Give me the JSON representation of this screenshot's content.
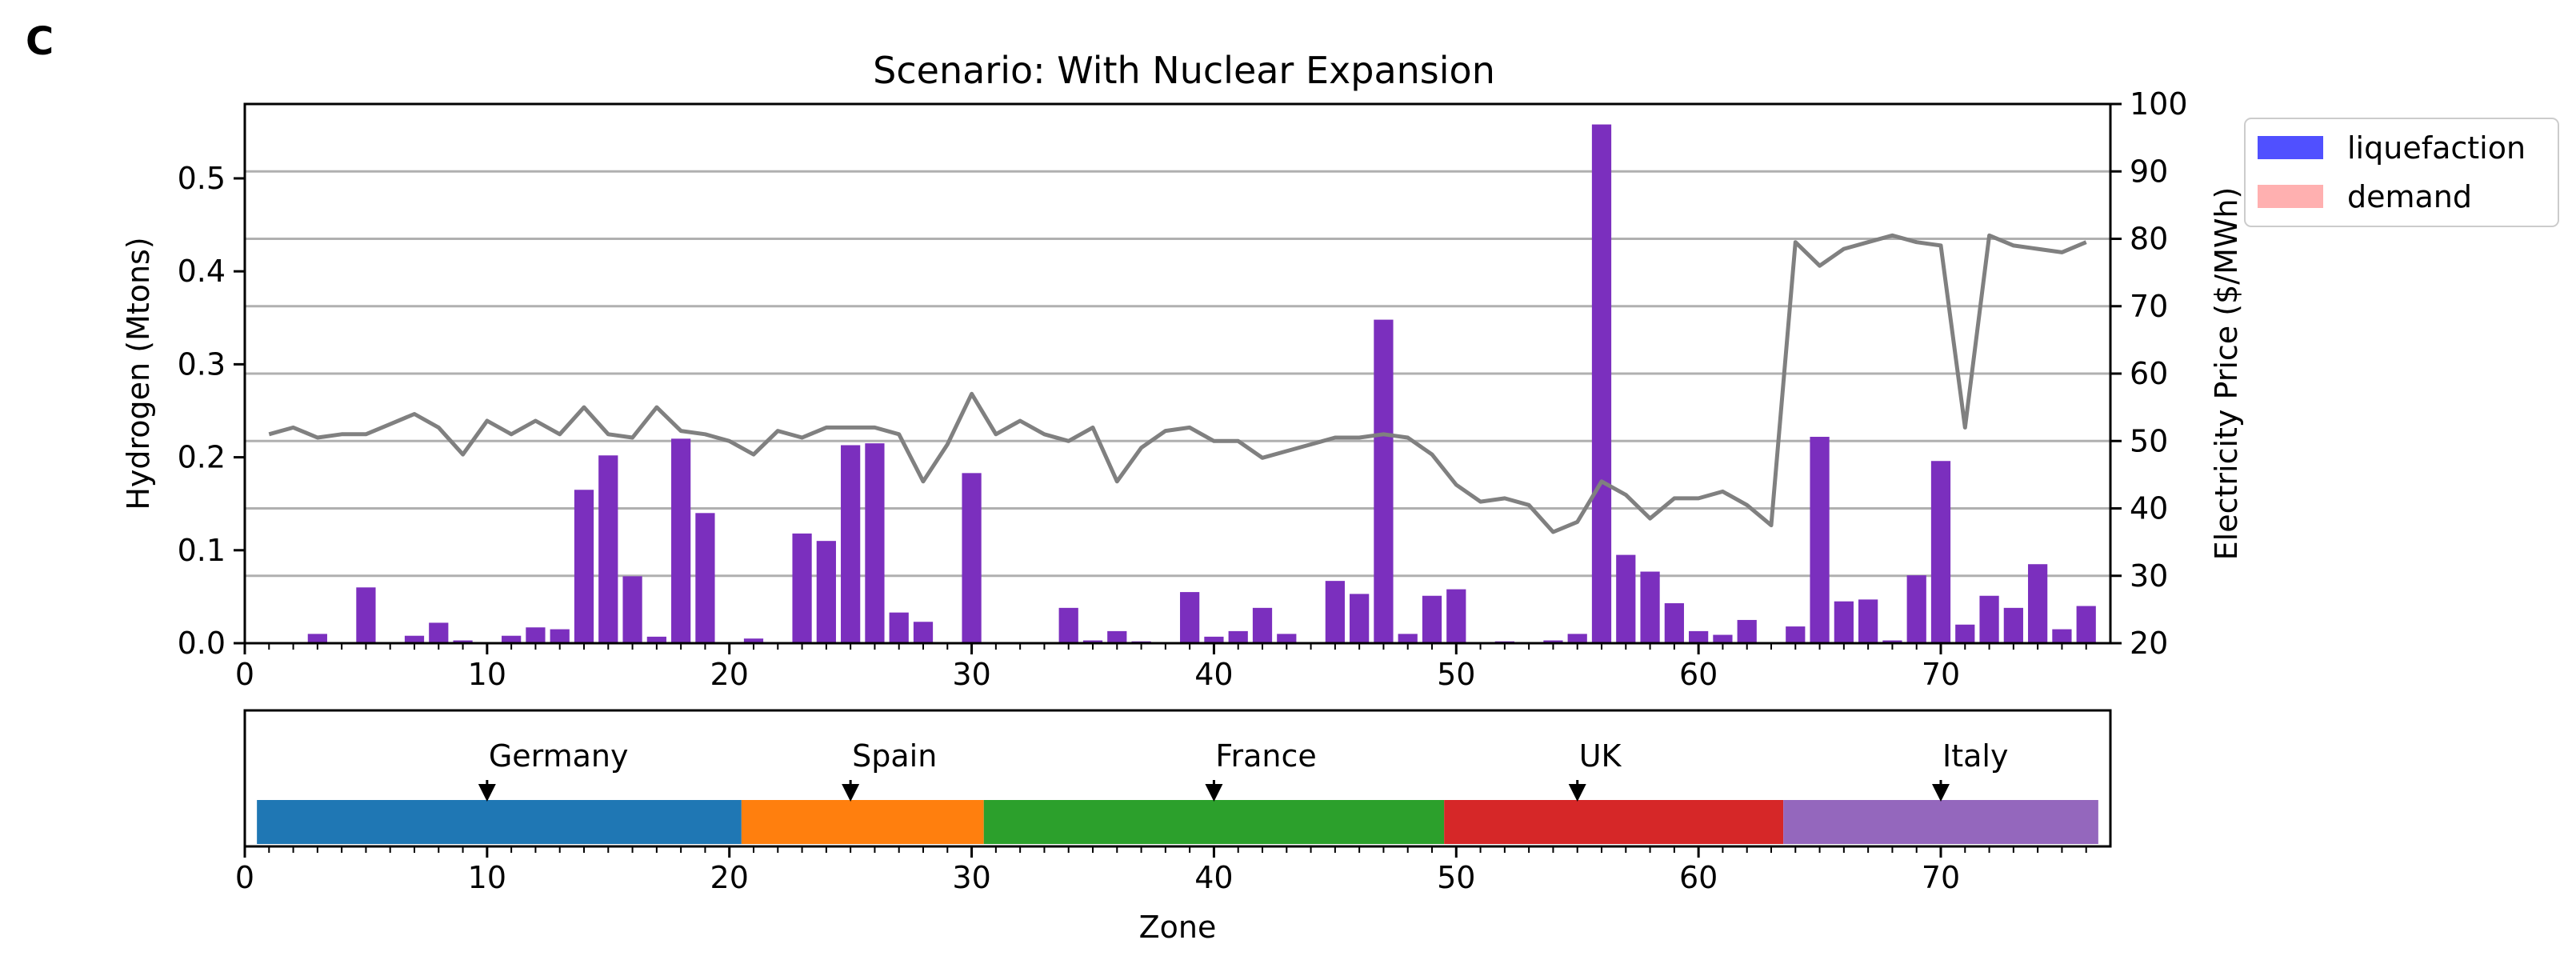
{
  "panel_label": "C",
  "colors": {
    "bar": "#7b2fbe",
    "price_line": "#808080",
    "gridline": "#b0b0b0",
    "legend_liquefaction": "#5050ff",
    "legend_demand": "#ffb0b0"
  },
  "chart_data": [
    {
      "type": "bar",
      "title": "Scenario: With Nuclear Expansion",
      "xlabel": "",
      "ylabel": "Hydrogen (Mtons)",
      "y2label": "Electricity Price ($/MWh)",
      "xlim": [
        0,
        77
      ],
      "ylim": [
        0,
        0.58
      ],
      "y2lim": [
        20,
        100
      ],
      "xticks": [
        0,
        10,
        20,
        30,
        40,
        50,
        60,
        70
      ],
      "yticks": [
        0.0,
        0.1,
        0.2,
        0.3,
        0.4,
        0.5
      ],
      "ytick_labels": [
        "0.0",
        "0.1",
        "0.2",
        "0.3",
        "0.4",
        "0.5"
      ],
      "y2ticks": [
        20,
        30,
        40,
        50,
        60,
        70,
        80,
        90,
        100
      ],
      "grid": "horizontal lines on right axis",
      "legend": {
        "placement": "outside top-right",
        "entries": [
          {
            "label": "liquefaction",
            "color": "#5050ff"
          },
          {
            "label": "demand",
            "color": "#ffb0b0"
          }
        ]
      },
      "x": [
        1,
        2,
        3,
        4,
        5,
        6,
        7,
        8,
        9,
        10,
        11,
        12,
        13,
        14,
        15,
        16,
        17,
        18,
        19,
        20,
        21,
        22,
        23,
        24,
        25,
        26,
        27,
        28,
        29,
        30,
        31,
        32,
        33,
        34,
        35,
        36,
        37,
        38,
        39,
        40,
        41,
        42,
        43,
        44,
        45,
        46,
        47,
        48,
        49,
        50,
        51,
        52,
        53,
        54,
        55,
        56,
        57,
        58,
        59,
        60,
        61,
        62,
        63,
        64,
        65,
        66,
        67,
        68,
        69,
        70,
        71,
        72,
        73,
        74,
        75,
        76
      ],
      "series": [
        {
          "type": "bar",
          "axis": "left",
          "values": [
            0.0,
            0.0,
            0.01,
            0.0,
            0.06,
            0.0,
            0.008,
            0.022,
            0.003,
            0.0,
            0.008,
            0.017,
            0.015,
            0.165,
            0.202,
            0.072,
            0.007,
            0.22,
            0.14,
            0.0,
            0.005,
            0.0,
            0.118,
            0.11,
            0.213,
            0.215,
            0.033,
            0.023,
            0.0,
            0.183,
            0.0,
            0.0,
            0.0,
            0.038,
            0.003,
            0.013,
            0.002,
            0.0,
            0.055,
            0.007,
            0.013,
            0.038,
            0.01,
            0.0,
            0.067,
            0.053,
            0.348,
            0.01,
            0.051,
            0.058,
            0.0,
            0.002,
            0.0,
            0.003,
            0.01,
            0.558,
            0.095,
            0.077,
            0.043,
            0.013,
            0.009,
            0.025,
            0.0,
            0.018,
            0.222,
            0.045,
            0.047,
            0.003,
            0.073,
            0.196,
            0.02,
            0.051,
            0.038,
            0.085,
            0.015,
            0.04
          ]
        },
        {
          "type": "line",
          "axis": "right",
          "values": [
            51,
            52,
            50.5,
            51,
            51,
            52.5,
            54,
            52,
            48,
            53,
            51,
            53,
            51,
            55,
            51,
            50.5,
            55,
            51.5,
            51,
            50,
            48,
            51.5,
            50.5,
            52,
            52,
            52,
            51,
            44,
            49.5,
            57,
            51,
            53,
            51,
            50,
            52,
            44,
            49,
            51.5,
            52,
            50,
            50,
            47.5,
            48.5,
            49.5,
            50.5,
            50.5,
            51,
            50.5,
            48,
            43.5,
            41,
            41.5,
            40.5,
            36.5,
            38,
            44,
            42,
            38.5,
            41.5,
            41.5,
            42.5,
            40.5,
            37.5,
            79.5,
            76,
            78.5,
            79.5,
            80.5,
            79.5,
            79,
            52,
            80.5,
            79,
            78.5,
            78,
            79.5
          ]
        }
      ]
    },
    {
      "type": "bar",
      "xlabel": "Zone",
      "xlim": [
        0,
        77
      ],
      "xticks": [
        0,
        10,
        20,
        30,
        40,
        50,
        60,
        70
      ],
      "countries": [
        {
          "label": "Germany",
          "start": 0.5,
          "end": 20.5,
          "marker": 10,
          "color": "#1f77b4"
        },
        {
          "label": "Spain",
          "start": 20.5,
          "end": 30.5,
          "marker": 25,
          "color": "#ff7f0e"
        },
        {
          "label": "France",
          "start": 30.5,
          "end": 49.5,
          "marker": 40,
          "color": "#2ca02c"
        },
        {
          "label": "UK",
          "start": 49.5,
          "end": 63.5,
          "marker": 55,
          "color": "#d62728"
        },
        {
          "label": "Italy",
          "start": 63.5,
          "end": 76.5,
          "marker": 70,
          "color": "#9467bd"
        }
      ]
    }
  ]
}
